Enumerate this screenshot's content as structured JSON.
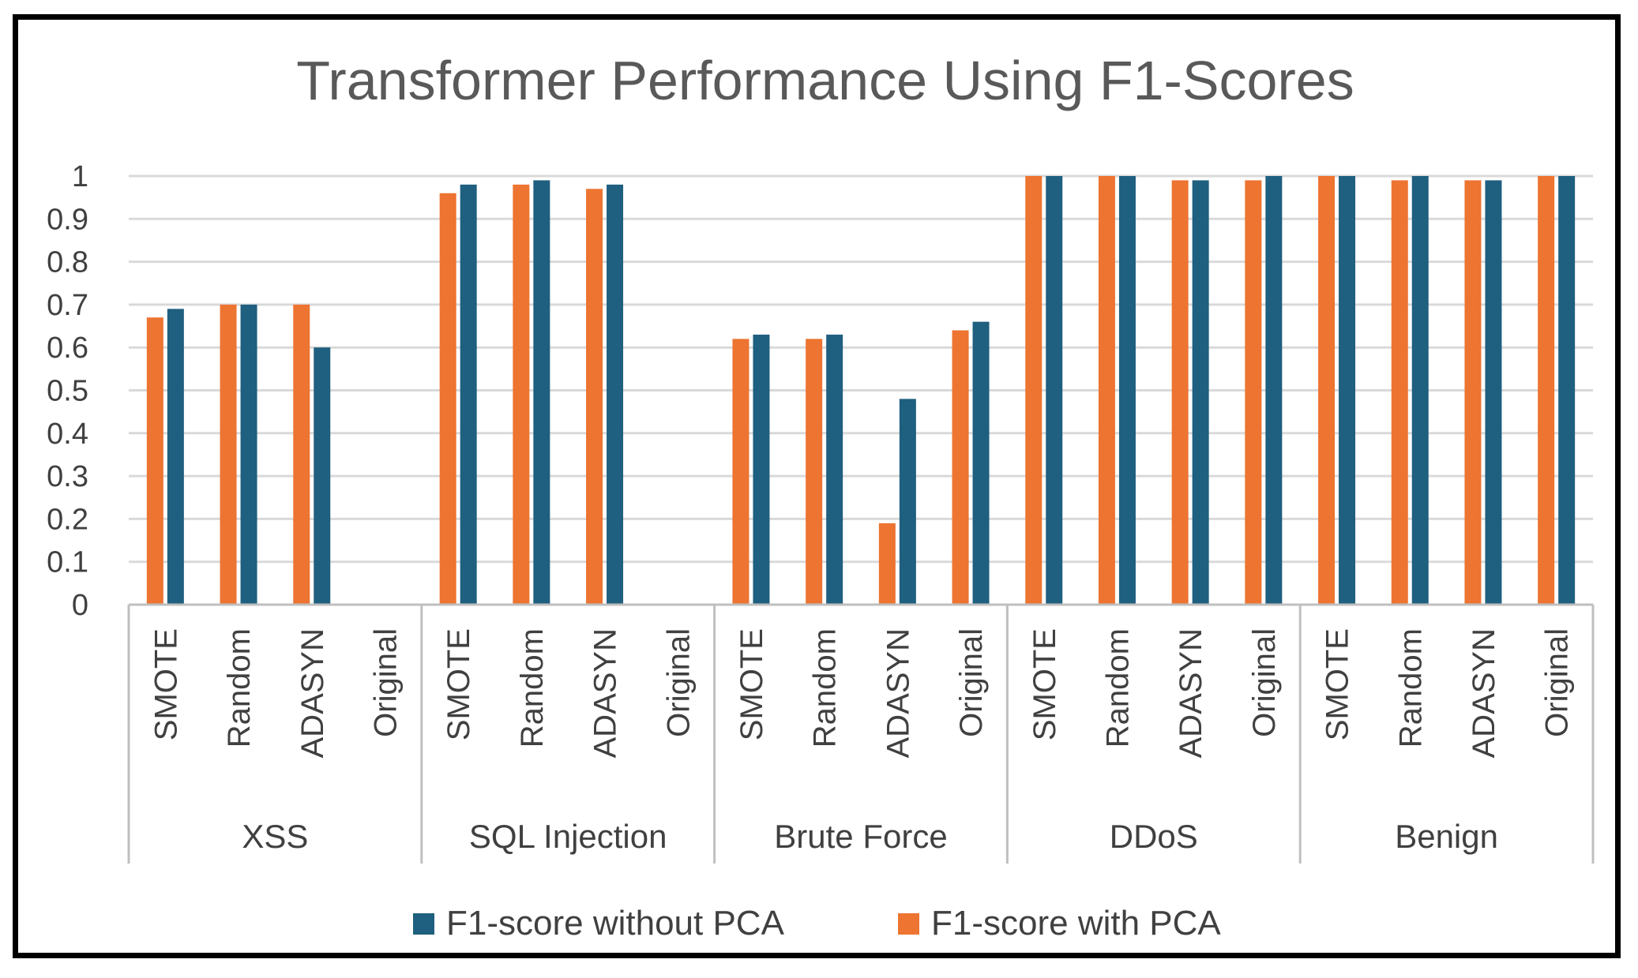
{
  "colors": {
    "without_pca": "#1f5f7f",
    "with_pca": "#ed7431",
    "gridline": "#d9d9d9",
    "axis": "#bfbfbf",
    "text": "#404040",
    "title": "#595959"
  },
  "chart_data": {
    "type": "bar",
    "title": "Transformer Performance Using F1-Scores",
    "xlabel": "",
    "ylabel": "",
    "ylim": [
      0,
      1
    ],
    "yticks": [
      "0",
      "0.1",
      "0.2",
      "0.3",
      "0.4",
      "0.5",
      "0.6",
      "0.7",
      "0.8",
      "0.9",
      "1"
    ],
    "grid": true,
    "legend_position": "bottom",
    "groups": [
      {
        "name": "XSS",
        "categories": [
          "SMOTE",
          "Random",
          "ADASYN",
          "Original"
        ]
      },
      {
        "name": "SQL Injection",
        "categories": [
          "SMOTE",
          "Random",
          "ADASYN",
          "Original"
        ]
      },
      {
        "name": "Brute Force",
        "categories": [
          "SMOTE",
          "Random",
          "ADASYN",
          "Original"
        ]
      },
      {
        "name": "DDoS",
        "categories": [
          "SMOTE",
          "Random",
          "ADASYN",
          "Original"
        ]
      },
      {
        "name": "Benign",
        "categories": [
          "SMOTE",
          "Random",
          "ADASYN",
          "Original"
        ]
      }
    ],
    "series": [
      {
        "name": "F1-score with PCA",
        "color_key": "with_pca",
        "values": [
          0.67,
          0.7,
          0.7,
          0,
          0.96,
          0.98,
          0.97,
          0,
          0.62,
          0.62,
          0.19,
          0.64,
          1.0,
          1.0,
          0.99,
          0.99,
          1.0,
          0.99,
          0.99,
          1.0
        ]
      },
      {
        "name": "F1-score without PCA",
        "color_key": "without_pca",
        "values": [
          0.69,
          0.7,
          0.6,
          0,
          0.98,
          0.99,
          0.98,
          0,
          0.63,
          0.63,
          0.48,
          0.66,
          1.0,
          1.0,
          0.99,
          1.0,
          1.0,
          1.0,
          0.99,
          1.0
        ]
      }
    ],
    "legend": [
      "F1-score without PCA",
      "F1-score with PCA"
    ]
  }
}
